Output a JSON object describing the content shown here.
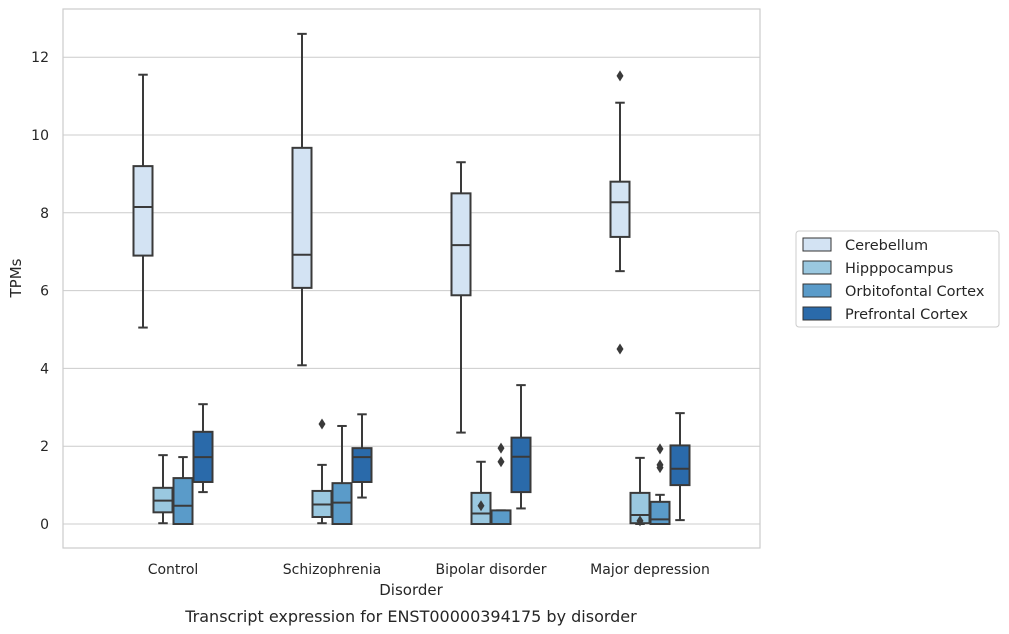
{
  "chart_data": {
    "type": "boxplot",
    "title": "",
    "caption": "Transcript expression for ENST00000394175 by disorder",
    "xlabel": "Disorder",
    "ylabel": "TPMs",
    "ylim": [
      -0.6,
      13.2
    ],
    "yticks": [
      0,
      2,
      4,
      6,
      8,
      10,
      12
    ],
    "ytick_labels": [
      "0",
      "2",
      "4",
      "6",
      "8",
      "10",
      "12"
    ],
    "grid": "horizontal",
    "legend_position": "right",
    "categories": [
      "Control",
      "Schizophrenia",
      "Bipolar disorder",
      "Major depression"
    ],
    "series": [
      {
        "name": "Cerebellum",
        "color": "#d3e3f3",
        "boxes": [
          {
            "whislo": 5.05,
            "q1": 6.9,
            "med": 8.15,
            "q3": 9.2,
            "whishi": 11.55,
            "fliers": []
          },
          {
            "whislo": 4.08,
            "q1": 6.07,
            "med": 6.92,
            "q3": 9.67,
            "whishi": 12.6,
            "fliers": []
          },
          {
            "whislo": 2.35,
            "q1": 5.88,
            "med": 7.17,
            "q3": 8.5,
            "whishi": 9.3,
            "fliers": []
          },
          {
            "whislo": 6.5,
            "q1": 7.38,
            "med": 8.27,
            "q3": 8.8,
            "whishi": 10.83,
            "fliers": [
              11.52,
              4.5
            ]
          }
        ]
      },
      {
        "name": "Hipppocampus",
        "color": "#9ac8e0",
        "boxes": [
          {
            "whislo": 0.02,
            "q1": 0.3,
            "med": 0.6,
            "q3": 0.93,
            "whishi": 1.77,
            "fliers": []
          },
          {
            "whislo": 0.02,
            "q1": 0.18,
            "med": 0.5,
            "q3": 0.85,
            "whishi": 1.52,
            "fliers": [
              2.57
            ]
          },
          {
            "whislo": 0.0,
            "q1": 0.0,
            "med": 0.27,
            "q3": 0.8,
            "whishi": 1.6,
            "fliers": [
              0.47
            ]
          },
          {
            "whislo": 0.0,
            "q1": 0.02,
            "med": 0.23,
            "q3": 0.8,
            "whishi": 1.7,
            "fliers": [
              0.08
            ]
          }
        ]
      },
      {
        "name": "Orbitofontal Cortex",
        "color": "#5a9bc9",
        "boxes": [
          {
            "whislo": 0.0,
            "q1": 0.0,
            "med": 0.47,
            "q3": 1.18,
            "whishi": 1.72,
            "fliers": []
          },
          {
            "whislo": 0.0,
            "q1": 0.0,
            "med": 0.55,
            "q3": 1.05,
            "whishi": 2.52,
            "fliers": []
          },
          {
            "whislo": 0.0,
            "q1": 0.0,
            "med": 0.0,
            "q3": 0.35,
            "whishi": 0.35,
            "fliers": [
              1.95,
              1.6
            ]
          },
          {
            "whislo": 0.0,
            "q1": 0.0,
            "med": 0.12,
            "q3": 0.57,
            "whishi": 0.75,
            "fliers": [
              1.93,
              1.52,
              1.45
            ]
          }
        ]
      },
      {
        "name": "Prefrontal Cortex",
        "color": "#2a6aaa",
        "boxes": [
          {
            "whislo": 0.82,
            "q1": 1.08,
            "med": 1.72,
            "q3": 2.37,
            "whishi": 3.08,
            "fliers": []
          },
          {
            "whislo": 0.68,
            "q1": 1.08,
            "med": 1.72,
            "q3": 1.95,
            "whishi": 2.82,
            "fliers": []
          },
          {
            "whislo": 0.4,
            "q1": 0.82,
            "med": 1.73,
            "q3": 2.22,
            "whishi": 3.57,
            "fliers": []
          },
          {
            "whislo": 0.1,
            "q1": 1.0,
            "med": 1.42,
            "q3": 2.02,
            "whishi": 2.85,
            "fliers": []
          }
        ]
      }
    ]
  }
}
